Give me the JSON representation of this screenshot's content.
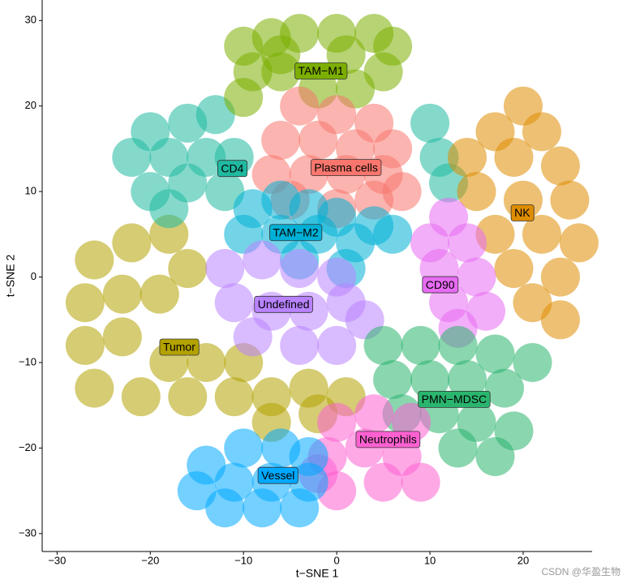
{
  "chart_data": {
    "type": "scatter",
    "x_label": "t−SNE 1",
    "y_label": "t−SNE 2",
    "watermark": "CSDN @华盈生物",
    "xlim": [
      -31.6,
      27.4
    ],
    "ylim": [
      -32.1,
      32.4
    ],
    "xticks": [
      {
        "value": -30,
        "label": "−30"
      },
      {
        "value": -20,
        "label": "−20"
      },
      {
        "value": -10,
        "label": "−10"
      },
      0,
      10,
      20
    ],
    "yticks": [
      {
        "value": -30,
        "label": "−30"
      },
      {
        "value": -20,
        "label": "−20"
      },
      {
        "value": -10,
        "label": "−10"
      },
      0,
      10,
      20,
      30
    ],
    "series": [
      {
        "name": "Tumor",
        "color": "#b3a200",
        "label_x": -16.9,
        "label_y": -8.2,
        "x": [
          -26,
          -22,
          -18,
          -16,
          -27,
          -23,
          -19,
          -27,
          -23,
          -18,
          -14,
          -26,
          -21,
          -16,
          -11,
          -7,
          -3,
          1,
          -10,
          -7,
          -2
        ],
        "y": [
          2,
          4,
          5,
          1,
          -3,
          -2,
          -2,
          -8,
          -7,
          -10,
          -10,
          -13,
          -14,
          -14,
          -14,
          -14,
          -13,
          -14,
          -10,
          -17,
          -16
        ]
      },
      {
        "name": "CD4",
        "color": "#1fb9a0",
        "label_x": -11.2,
        "label_y": 12.7,
        "x": [
          -20,
          -16,
          -13,
          -22,
          -18,
          -14,
          -11,
          -20,
          -16,
          -12,
          -18,
          10,
          11,
          12
        ],
        "y": [
          17,
          18,
          19,
          14,
          14,
          14,
          14,
          10,
          11,
          10,
          8,
          18,
          14,
          11
        ]
      },
      {
        "name": "TAM−M1",
        "color": "#7cae00",
        "label_x": -1.7,
        "label_y": 24.1,
        "x": [
          -10,
          -7,
          -4,
          0,
          4,
          6,
          -9,
          -6,
          -2,
          2,
          -10,
          -6,
          1,
          5
        ],
        "y": [
          27,
          28,
          28.5,
          28.5,
          28.5,
          27,
          24,
          24,
          22,
          22,
          21,
          26,
          26,
          24
        ]
      },
      {
        "name": "Plasma cells",
        "color": "#f8766d",
        "label_x": 1.0,
        "label_y": 12.8,
        "x": [
          -4,
          0,
          4,
          -6,
          -2,
          2,
          6,
          -7,
          -3,
          1,
          5,
          -5,
          0,
          4,
          7
        ],
        "y": [
          20,
          19,
          18,
          16,
          16,
          15,
          15,
          12,
          12,
          12,
          12,
          9,
          8,
          9,
          10
        ]
      },
      {
        "name": "NK",
        "color": "#de8c00",
        "label_x": 19.9,
        "label_y": 7.5,
        "x": [
          20,
          17,
          22,
          14,
          19,
          24,
          15,
          20,
          25,
          17,
          22,
          26,
          19,
          24,
          21,
          24
        ],
        "y": [
          20,
          17,
          17,
          14,
          14,
          13,
          10,
          9,
          9,
          5,
          5,
          4,
          1,
          0,
          -3,
          -5
        ]
      },
      {
        "name": "TAM−M2",
        "color": "#00b0d6",
        "label_x": -4.4,
        "label_y": 5.2,
        "x": [
          -9,
          -6,
          -3,
          0,
          4,
          6,
          -10,
          -6,
          -2,
          2,
          -4,
          1
        ],
        "y": [
          8,
          9,
          8,
          7,
          6,
          5,
          5,
          5,
          5,
          4,
          2,
          1
        ]
      },
      {
        "name": "Undefined",
        "color": "#b983ff",
        "label_x": -5.7,
        "label_y": -3.2,
        "x": [
          -12,
          -8,
          -4,
          0,
          -11,
          -7,
          -3,
          1,
          -9,
          -4,
          0,
          3
        ],
        "y": [
          1,
          2,
          1,
          0,
          -3,
          -4,
          -4,
          -3,
          -7,
          -8,
          -8,
          -5
        ]
      },
      {
        "name": "CD90",
        "color": "#e76bf3",
        "label_x": 11.1,
        "label_y": -0.9,
        "x": [
          12,
          10,
          14,
          11,
          15,
          12,
          16,
          13
        ],
        "y": [
          7,
          4,
          4,
          1,
          0,
          -3,
          -4,
          -6
        ]
      },
      {
        "name": "PMN−MDSC",
        "color": "#2ab56e",
        "label_x": 12.6,
        "label_y": -14.3,
        "x": [
          5,
          9,
          13,
          17,
          21,
          6,
          10,
          14,
          18,
          7,
          11,
          15,
          19,
          13,
          17
        ],
        "y": [
          -8,
          -8,
          -8,
          -9,
          -10,
          -12,
          -12,
          -12,
          -13,
          -16,
          -16,
          -17,
          -18,
          -20,
          -21
        ]
      },
      {
        "name": "Neutrophils",
        "color": "#fd61d1",
        "label_x": 5.5,
        "label_y": -19.0,
        "x": [
          0,
          4,
          8,
          -1,
          3,
          7,
          0,
          5,
          9,
          -2
        ],
        "y": [
          -17,
          -16,
          -17,
          -21,
          -20,
          -21,
          -25,
          -24,
          -24,
          -23
        ]
      },
      {
        "name": "Vessel",
        "color": "#00a9ff",
        "label_x": -6.3,
        "label_y": -23.2,
        "x": [
          -14,
          -10,
          -6,
          -3,
          -15,
          -11,
          -7,
          -3,
          -12,
          -8,
          -4
        ],
        "y": [
          -22,
          -20,
          -20,
          -21,
          -25,
          -24,
          -24,
          -24,
          -27,
          -27,
          -27
        ]
      }
    ]
  }
}
